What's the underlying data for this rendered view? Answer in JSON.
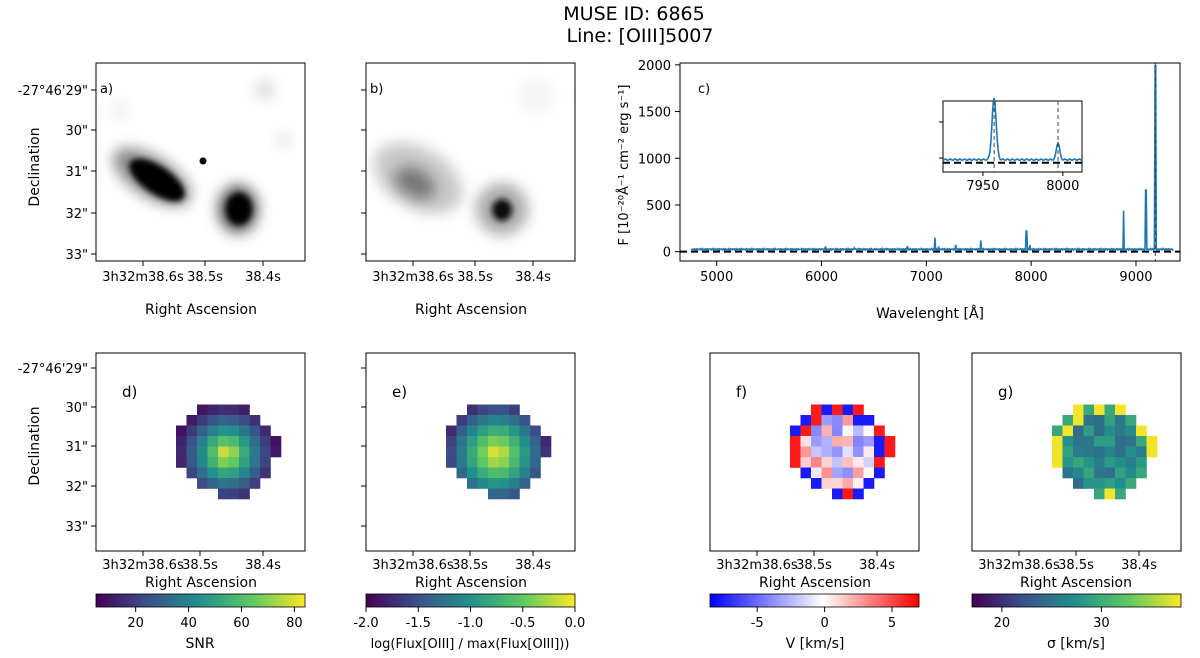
{
  "figure": {
    "title_line1": "MUSE ID: 6865",
    "title_line2": "Line: [OIII]5007"
  },
  "chart_data": [
    {
      "id": "a",
      "type": "heatmap",
      "panel_label": "a)",
      "description_kind": "HST image cutout",
      "xlabel": "Right Ascension",
      "ylabel": "Declination",
      "xticks": [
        "3h32m38.6s",
        "38.5s",
        "38.4s"
      ],
      "yticks": [
        "-27°46'29\"",
        "30\"",
        "31\"",
        "32\"",
        "33\""
      ],
      "colormap": "gray_r"
    },
    {
      "id": "b",
      "type": "heatmap",
      "panel_label": "b)",
      "xlabel": "Right Ascension",
      "xticks": [
        "3h32m38.6s",
        "38.5s",
        "38.4s"
      ],
      "colormap": "gray_r"
    },
    {
      "id": "c",
      "type": "line",
      "panel_label": "c)",
      "xlabel": "Wavelenght [Å]",
      "ylabel": "F [10⁻²⁰Å⁻¹ cm⁻² erg s⁻¹]",
      "xlim": [
        4650,
        9420
      ],
      "ylim": [
        -100,
        2020
      ],
      "xticks": [
        5000,
        6000,
        7000,
        8000,
        9000
      ],
      "yticks": [
        0,
        500,
        1000,
        1500,
        2000
      ],
      "baseline": 0,
      "continuum": 25,
      "lines": [
        {
          "x": 6040,
          "peak": 55
        },
        {
          "x": 6315,
          "peak": 40
        },
        {
          "x": 6580,
          "peak": 35
        },
        {
          "x": 6820,
          "peak": 60
        },
        {
          "x": 7080,
          "peak": 150
        },
        {
          "x": 7120,
          "peak": 55
        },
        {
          "x": 7280,
          "peak": 75
        },
        {
          "x": 7520,
          "peak": 120
        },
        {
          "x": 7955,
          "peak": 220
        },
        {
          "x": 7990,
          "peak": 70
        },
        {
          "x": 8880,
          "peak": 440
        },
        {
          "x": 9095,
          "peak": 660
        },
        {
          "x": 9185,
          "peak": 1990
        }
      ],
      "vline": 9185,
      "inset": {
        "xlim": [
          7925,
          8012
        ],
        "xticks": [
          7950,
          8000
        ],
        "ylim": [
          -0.15,
          1.0
        ],
        "baseline": 0,
        "vlines": [
          7957,
          7997
        ],
        "peaks": [
          {
            "x": 7957,
            "peak": 1.0,
            "width": 1.3
          },
          {
            "x": 7997,
            "peak": 0.28,
            "width": 1.0
          }
        ],
        "continuum": 0.05
      }
    },
    {
      "id": "d",
      "type": "heatmap",
      "panel_label": "d)",
      "xlabel": "Right Ascension",
      "ylabel": "Declination",
      "xticks": [
        "3h32m38.6s",
        "38.5s",
        "38.4s"
      ],
      "yticks": [
        "-27°46'29\"",
        "30\"",
        "31\"",
        "32\"",
        "33\""
      ],
      "colormap": "viridis",
      "colorbar": {
        "label": "SNR",
        "range": [
          5,
          84
        ],
        "ticks": [
          20,
          40,
          60,
          80
        ]
      }
    },
    {
      "id": "e",
      "type": "heatmap",
      "panel_label": "e)",
      "xlabel": "Right Ascension",
      "xticks": [
        "3h32m38.6s",
        "38.5s",
        "38.4s"
      ],
      "colormap": "viridis",
      "colorbar": {
        "label": "log(Flux[OIII] / max(Flux[OIII]))",
        "range": [
          -2.0,
          0.0
        ],
        "ticks": [
          -2.0,
          -1.5,
          -1.0,
          -0.5,
          0.0
        ]
      }
    },
    {
      "id": "f",
      "type": "heatmap",
      "panel_label": "f)",
      "xlabel": "Right Ascension",
      "xticks": [
        "3h32m38.6s",
        "38.5s",
        "38.4s"
      ],
      "colormap": "bwr",
      "colorbar": {
        "label": "V [km/s]",
        "range": [
          -8.5,
          7
        ],
        "ticks": [
          -5,
          0,
          5
        ]
      }
    },
    {
      "id": "g",
      "type": "heatmap",
      "panel_label": "g)",
      "xlabel": "Right Ascension",
      "xticks": [
        "3h32m38.6s",
        "38.5s",
        "38.4s"
      ],
      "colormap": "viridis",
      "colorbar": {
        "label": "σ [km/s]",
        "range": [
          17,
          38
        ],
        "ticks": [
          20,
          30
        ]
      }
    }
  ]
}
